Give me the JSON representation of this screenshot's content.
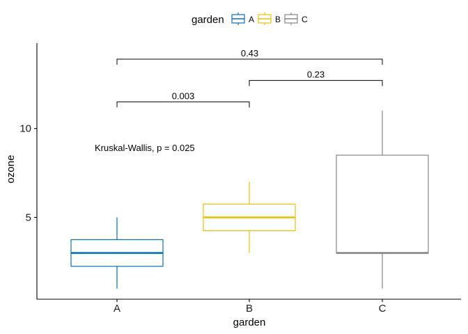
{
  "chart_data": {
    "type": "boxplot",
    "xlabel": "garden",
    "ylabel": "ozone",
    "ylim": [
      0.4,
      14.8
    ],
    "yticks": [
      5,
      10
    ],
    "categories": [
      "A",
      "B",
      "C"
    ],
    "colors": {
      "A": "#0073C2",
      "B": "#EFC000",
      "C": "#868686"
    },
    "legend": {
      "title": "garden",
      "position": "top",
      "entries": [
        "A",
        "B",
        "C"
      ]
    },
    "boxes": [
      {
        "category": "A",
        "min": 1,
        "q1": 2.25,
        "median": 3,
        "q3": 3.75,
        "max": 5
      },
      {
        "category": "B",
        "min": 3,
        "q1": 4.25,
        "median": 5,
        "q3": 5.75,
        "max": 7
      },
      {
        "category": "C",
        "min": 1,
        "q1": 3,
        "median": 3,
        "q3": 8.5,
        "max": 11
      }
    ],
    "global_test": {
      "label": "Kruskal-Wallis, p = 0.025",
      "y": 8.9
    },
    "comparisons": [
      {
        "group1": "A",
        "group2": "B",
        "p_label": "0.003",
        "y": 11.5
      },
      {
        "group1": "B",
        "group2": "C",
        "p_label": "0.23",
        "y": 12.7
      },
      {
        "group1": "A",
        "group2": "C",
        "p_label": "0.43",
        "y": 13.9
      }
    ],
    "grid": false
  }
}
